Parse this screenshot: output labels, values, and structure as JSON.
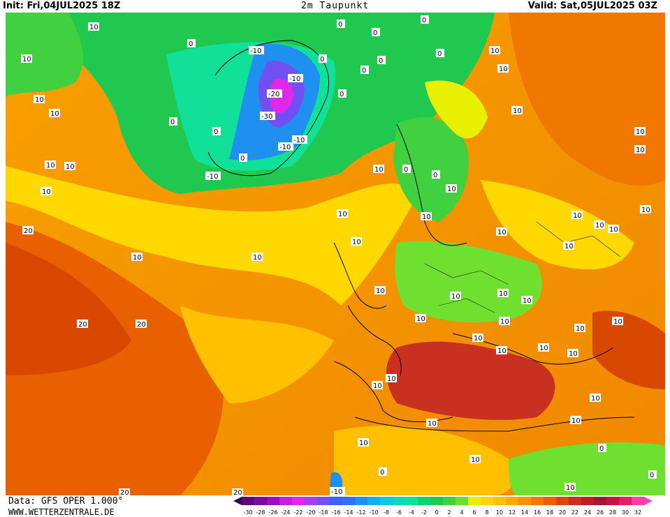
{
  "header": {
    "init": "Init: Fri,04JUL2025 18Z",
    "title": "2m Taupunkt",
    "valid": "Valid: Sat,05JUL2025 03Z"
  },
  "footer": {
    "source": "Data: GFS OPER 1.000°",
    "site": "WWW.WETTERZENTRALE.DE"
  },
  "colorbar": {
    "ticks": [
      "-30",
      "-28",
      "-26",
      "-24",
      "-22",
      "-20",
      "-18",
      "-16",
      "-14",
      "-12",
      "-10",
      "-8",
      "-6",
      "-4",
      "-2",
      "0",
      "2",
      "4",
      "6",
      "8",
      "10",
      "12",
      "14",
      "16",
      "18",
      "20",
      "22",
      "24",
      "26",
      "28",
      "30",
      "32"
    ],
    "colors": [
      "#5a0a78",
      "#780ca0",
      "#9a10c0",
      "#c020e0",
      "#e028e8",
      "#a040f0",
      "#7050f0",
      "#4060f0",
      "#3070f0",
      "#2090f0",
      "#10b0f0",
      "#10c8e0",
      "#10d8b8",
      "#10e098",
      "#10d070",
      "#20c850",
      "#40d040",
      "#70e030",
      "#e8f000",
      "#ffd800",
      "#ffc000",
      "#ffa800",
      "#f89000",
      "#f07800",
      "#e86000",
      "#d84800",
      "#c83020",
      "#b82028",
      "#a01830",
      "#c01840",
      "#e02060",
      "#ff40a0"
    ],
    "left_arrow_color": "#3a0050",
    "right_arrow_color": "#ff40c0"
  },
  "map_labels": {
    "atlantic_west": [
      "10",
      "10",
      "10",
      "10",
      "10",
      "10",
      "10",
      "10",
      "10",
      "10"
    ],
    "atlantic_south": [
      "20",
      "20",
      "20",
      "10",
      "10"
    ],
    "greenland": [
      "-10",
      "-10",
      "-20",
      "-30",
      "-10",
      "-10",
      "-10",
      "0",
      "0",
      "0",
      "0",
      "0"
    ],
    "iceland_arctic": [
      "0",
      "0",
      "0",
      "0",
      "0",
      "0",
      "0"
    ],
    "europe": [
      "10",
      "10",
      "10",
      "10",
      "10",
      "10",
      "10",
      "10",
      "10",
      "10",
      "10",
      "10",
      "10",
      "10",
      "10",
      "10",
      "10",
      "10",
      "10",
      "10"
    ],
    "scandinavia": [
      "0",
      "0",
      "10",
      "10"
    ],
    "mediterranean": [
      "10",
      "10",
      "10",
      "10",
      "10",
      "10",
      "10",
      "10"
    ],
    "africa": [
      "10",
      "10",
      "0",
      "0",
      "0",
      "10",
      "-10",
      "20",
      "20"
    ]
  }
}
